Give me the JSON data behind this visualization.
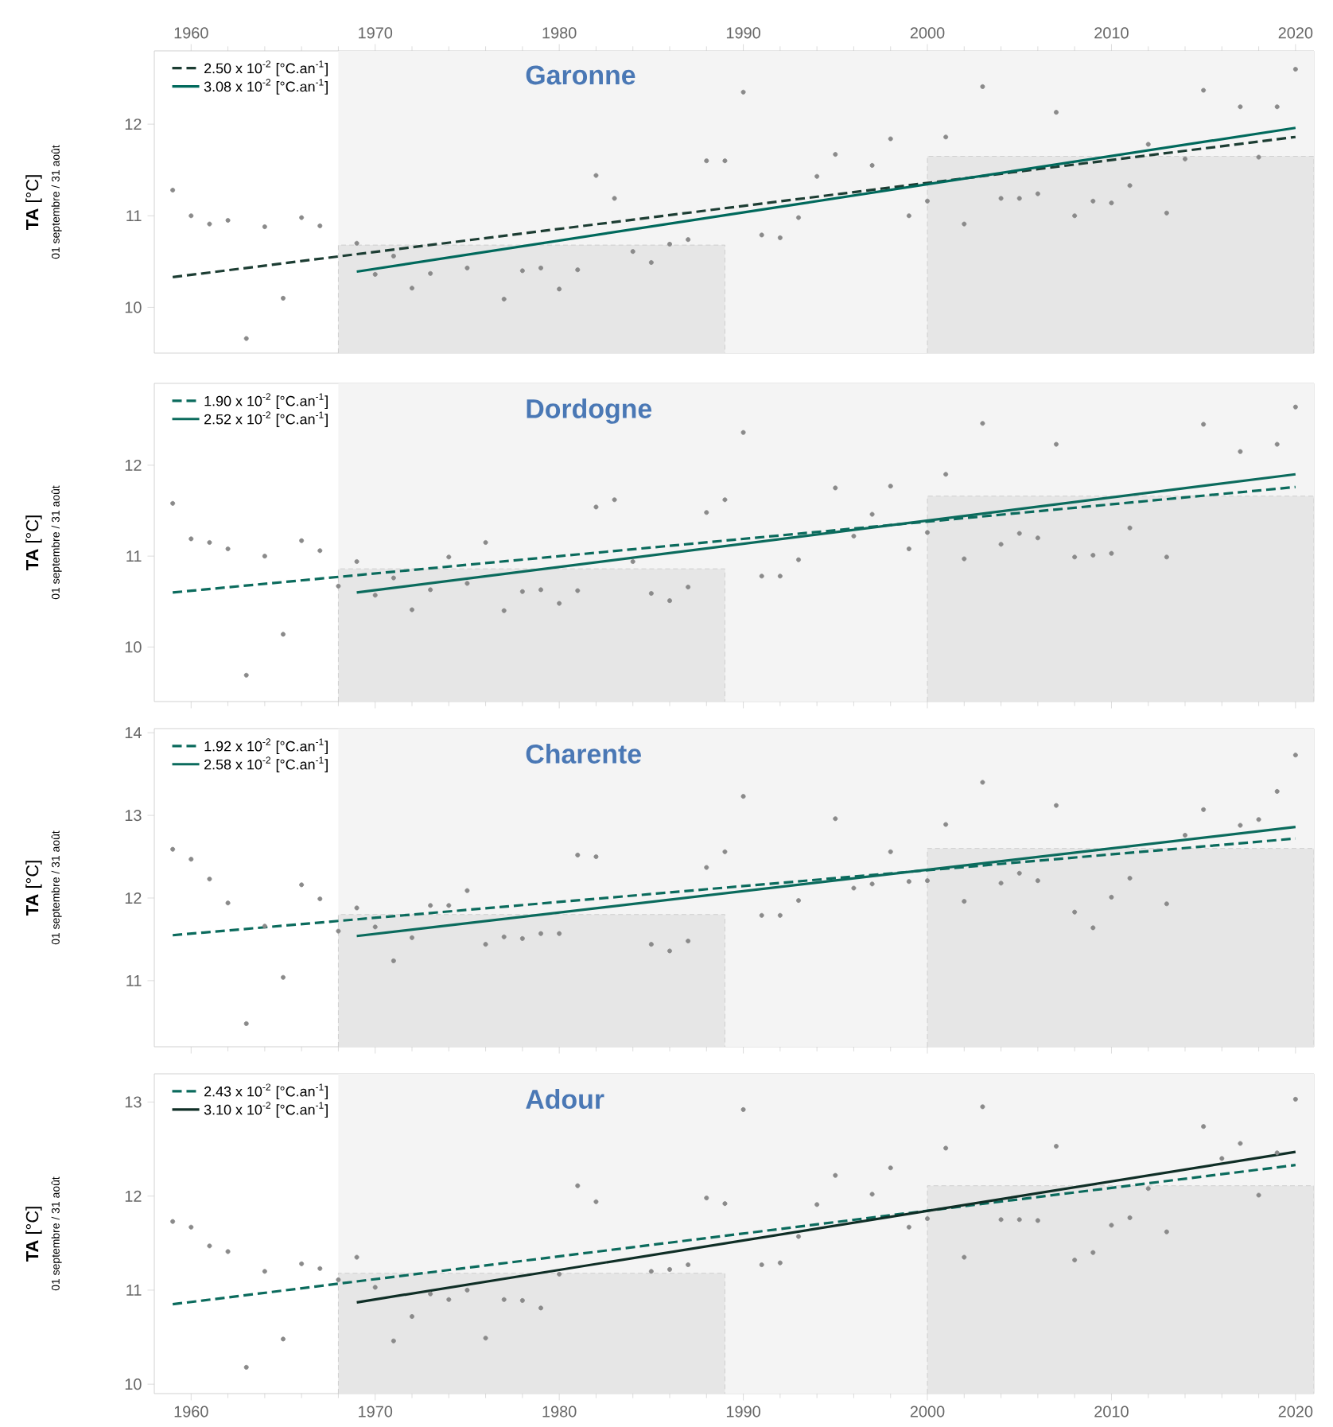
{
  "chart_data": [
    {
      "type": "scatter",
      "title": "Garonne",
      "ylabel": "**TA**   [°C]",
      "annotations": [
        "01 septembre / 31 août"
      ],
      "x": [
        1959,
        1960,
        1961,
        1962,
        1963,
        1964,
        1965,
        1966,
        1967,
        1968,
        1969,
        1970,
        1971,
        1972,
        1973,
        1974,
        1975,
        1976,
        1977,
        1978,
        1979,
        1980,
        1981,
        1982,
        1983,
        1984,
        1985,
        1986,
        1987,
        1988,
        1989,
        1990,
        1991,
        1992,
        1993,
        1994,
        1995,
        1996,
        1997,
        1998,
        1999,
        2000,
        2001,
        2002,
        2003,
        2004,
        2005,
        2006,
        2007,
        2008,
        2009,
        2010,
        2011,
        2012,
        2013,
        2014,
        2015,
        2016,
        2017,
        2018,
        2019,
        2020
      ],
      "xlim": [
        1958,
        2021
      ],
      "x2lim": [
        1958,
        2021
      ],
      "x2ticks": [
        1960,
        1970,
        1980,
        1990,
        2000,
        2010,
        2020
      ],
      "ylim": [
        9.5,
        12.8
      ],
      "yticks": [
        10,
        11,
        12
      ],
      "bands": [
        {
          "axis": "x",
          "from": 1968,
          "to": 2021,
          "color": "#f4f4f4"
        }
      ],
      "legend": "top left",
      "series": [
        {
          "type": "area",
          "color": "#e6e6e6",
          "x": [
            1968,
            1989
          ],
          "values": [
            10.68,
            10.68
          ]
        },
        {
          "type": "area",
          "color": "#e6e6e6",
          "x": [
            2000,
            2021
          ],
          "values": [
            11.65,
            11.65
          ]
        },
        {
          "marker": "circle",
          "color": "#8a8a8a",
          "values": [
            11.28,
            11.0,
            10.91,
            10.95,
            9.66,
            10.88,
            10.1,
            10.98,
            10.89,
            null,
            10.7,
            10.36,
            10.56,
            10.21,
            10.37,
            null,
            10.43,
            null,
            10.09,
            10.4,
            10.43,
            10.2,
            10.41,
            11.44,
            11.19,
            10.61,
            10.49,
            10.69,
            10.74,
            11.6,
            11.6,
            12.35,
            10.79,
            10.76,
            10.98,
            11.43,
            11.67,
            null,
            11.55,
            11.84,
            11.0,
            11.16,
            11.86,
            10.91,
            12.41,
            11.19,
            11.19,
            11.24,
            12.13,
            11.0,
            11.16,
            11.14,
            11.33,
            11.78,
            11.03,
            11.62,
            12.37,
            null,
            12.19,
            11.64,
            12.19,
            12.6
          ]
        },
        {
          "type": "line",
          "name": "2.50 x 10$^{-2}$ [°C.an$^{-1}$]",
          "color": "#1c3d33",
          "line_style": "dashed",
          "x": [
            1959,
            2020
          ],
          "values": [
            10.33,
            11.86
          ]
        },
        {
          "type": "line",
          "name": "3.08 x 10$^{-2}$ [°C.an$^{-1}$]",
          "color": "#00695c",
          "line_style": "solid",
          "x": [
            1969,
            2020
          ],
          "values": [
            10.39,
            11.96
          ]
        }
      ]
    },
    {
      "type": "scatter",
      "title": "Dordogne",
      "ylabel": "**TA**   [°C]",
      "annotations": [
        "01 septembre / 31 août"
      ],
      "x": [
        1959,
        1960,
        1961,
        1962,
        1963,
        1964,
        1965,
        1966,
        1967,
        1968,
        1969,
        1970,
        1971,
        1972,
        1973,
        1974,
        1975,
        1976,
        1977,
        1978,
        1979,
        1980,
        1981,
        1982,
        1983,
        1984,
        1985,
        1986,
        1987,
        1988,
        1989,
        1990,
        1991,
        1992,
        1993,
        1994,
        1995,
        1996,
        1997,
        1998,
        1999,
        2000,
        2001,
        2002,
        2003,
        2004,
        2005,
        2006,
        2007,
        2008,
        2009,
        2010,
        2011,
        2012,
        2013,
        2014,
        2015,
        2016,
        2017,
        2018,
        2019,
        2020
      ],
      "xlim": [
        1958,
        2021
      ],
      "xticks": [
        1960,
        1970,
        1980,
        1990,
        2000,
        2010,
        2020
      ],
      "tick_labels": "y",
      "ylim": [
        9.4,
        12.9
      ],
      "yticks": [
        10,
        11,
        12
      ],
      "bands": [
        {
          "axis": "x",
          "from": 1968,
          "to": 2021,
          "color": "#f4f4f4"
        }
      ],
      "legend": "top left",
      "series": [
        {
          "type": "area",
          "color": "#e6e6e6",
          "x": [
            1968,
            1989
          ],
          "values": [
            10.86,
            10.86
          ]
        },
        {
          "type": "area",
          "color": "#e6e6e6",
          "x": [
            2000,
            2021
          ],
          "values": [
            11.66,
            11.66
          ]
        },
        {
          "marker": "circle",
          "color": "#8a8a8a",
          "values": [
            11.58,
            11.19,
            11.15,
            11.08,
            9.69,
            11.0,
            10.14,
            11.17,
            11.06,
            10.67,
            10.94,
            10.57,
            10.76,
            10.41,
            10.63,
            10.99,
            10.7,
            11.15,
            10.4,
            10.61,
            10.63,
            10.48,
            10.62,
            11.54,
            11.62,
            10.94,
            10.59,
            10.51,
            10.66,
            11.48,
            11.62,
            12.36,
            10.78,
            10.78,
            10.96,
            null,
            11.75,
            11.22,
            11.46,
            11.77,
            11.08,
            11.26,
            11.9,
            10.97,
            12.46,
            11.13,
            11.25,
            11.2,
            12.23,
            10.99,
            11.01,
            11.03,
            11.31,
            null,
            10.99,
            null,
            12.45,
            null,
            12.15,
            null,
            12.23,
            12.64
          ]
        },
        {
          "type": "line",
          "name": "1.90 x 10$^{-2}$ [°C.an$^{-1}$]",
          "color": "#0b6b5d",
          "line_style": "dashed",
          "x": [
            1959,
            2020
          ],
          "values": [
            10.6,
            11.76
          ]
        },
        {
          "type": "line",
          "name": "2.52 x 10$^{-2}$ [°C.an$^{-1}$]",
          "color": "#0b6b5d",
          "line_style": "solid",
          "x": [
            1969,
            2020
          ],
          "values": [
            10.6,
            11.9
          ]
        }
      ]
    },
    {
      "type": "scatter",
      "title": "Charente",
      "ylabel": "**TA**   [°C]",
      "annotations": [
        "01 septembre / 31 août"
      ],
      "x": [
        1959,
        1960,
        1961,
        1962,
        1963,
        1964,
        1965,
        1966,
        1967,
        1968,
        1969,
        1970,
        1971,
        1972,
        1973,
        1974,
        1975,
        1976,
        1977,
        1978,
        1979,
        1980,
        1981,
        1982,
        1983,
        1984,
        1985,
        1986,
        1987,
        1988,
        1989,
        1990,
        1991,
        1992,
        1993,
        1994,
        1995,
        1996,
        1997,
        1998,
        1999,
        2000,
        2001,
        2002,
        2003,
        2004,
        2005,
        2006,
        2007,
        2008,
        2009,
        2010,
        2011,
        2012,
        2013,
        2014,
        2015,
        2016,
        2017,
        2018,
        2019,
        2020
      ],
      "xlim": [
        1958,
        2021
      ],
      "xticks": [
        1960,
        1970,
        1980,
        1990,
        2000,
        2010,
        2020
      ],
      "tick_labels": "y",
      "ylim": [
        10.2,
        14.05
      ],
      "yticks": [
        11,
        12,
        13,
        14
      ],
      "bands": [
        {
          "axis": "x",
          "from": 1968,
          "to": 2021,
          "color": "#f4f4f4"
        }
      ],
      "legend": "top left",
      "series": [
        {
          "type": "area",
          "color": "#e6e6e6",
          "x": [
            1968,
            1989
          ],
          "values": [
            11.8,
            11.8
          ]
        },
        {
          "type": "area",
          "color": "#e6e6e6",
          "x": [
            2000,
            2021
          ],
          "values": [
            12.6,
            12.6
          ]
        },
        {
          "marker": "circle",
          "color": "#8a8a8a",
          "values": [
            12.59,
            12.47,
            12.23,
            11.94,
            10.48,
            11.66,
            11.04,
            12.16,
            11.99,
            11.6,
            11.88,
            11.65,
            11.24,
            11.52,
            11.91,
            11.91,
            12.09,
            11.44,
            11.53,
            11.51,
            11.57,
            11.57,
            12.52,
            12.5,
            null,
            null,
            11.44,
            11.36,
            11.48,
            12.37,
            12.56,
            13.23,
            11.79,
            11.79,
            11.97,
            null,
            12.96,
            12.12,
            12.17,
            12.56,
            12.2,
            12.21,
            12.89,
            11.96,
            13.4,
            12.18,
            12.3,
            12.21,
            13.12,
            11.83,
            11.64,
            12.01,
            12.24,
            null,
            11.93,
            12.76,
            13.07,
            null,
            12.88,
            12.95,
            13.29,
            13.73
          ]
        },
        {
          "type": "line",
          "name": "1.92 x 10$^{-2}$ [°C.an$^{-1}$]",
          "color": "#0b6b5d",
          "line_style": "dashed",
          "x": [
            1959,
            2020
          ],
          "values": [
            11.55,
            12.72
          ]
        },
        {
          "type": "line",
          "name": "2.58 x 10$^{-2}$ [°C.an$^{-1}$]",
          "color": "#0b6b5d",
          "line_style": "solid",
          "x": [
            1969,
            2020
          ],
          "values": [
            11.54,
            12.86
          ]
        }
      ]
    },
    {
      "type": "scatter",
      "title": "Adour",
      "ylabel": "**TA**   [°C]",
      "annotations": [
        "01 septembre / 31 août"
      ],
      "x": [
        1959,
        1960,
        1961,
        1962,
        1963,
        1964,
        1965,
        1966,
        1967,
        1968,
        1969,
        1970,
        1971,
        1972,
        1973,
        1974,
        1975,
        1976,
        1977,
        1978,
        1979,
        1980,
        1981,
        1982,
        1983,
        1984,
        1985,
        1986,
        1987,
        1988,
        1989,
        1990,
        1991,
        1992,
        1993,
        1994,
        1995,
        1996,
        1997,
        1998,
        1999,
        2000,
        2001,
        2002,
        2003,
        2004,
        2005,
        2006,
        2007,
        2008,
        2009,
        2010,
        2011,
        2012,
        2013,
        2014,
        2015,
        2016,
        2017,
        2018,
        2019,
        2020
      ],
      "xlim": [
        1958,
        2021
      ],
      "xticks": [
        1960,
        1970,
        1980,
        1990,
        2000,
        2010,
        2020
      ],
      "ylim": [
        9.9,
        13.3
      ],
      "yticks": [
        10,
        11,
        12,
        13
      ],
      "bands": [
        {
          "axis": "x",
          "from": 1968,
          "to": 2021,
          "color": "#f4f4f4"
        }
      ],
      "legend": "top left",
      "series": [
        {
          "type": "area",
          "color": "#e6e6e6",
          "x": [
            1968,
            1989
          ],
          "values": [
            11.18,
            11.18
          ]
        },
        {
          "type": "area",
          "color": "#e6e6e6",
          "x": [
            2000,
            2021
          ],
          "values": [
            12.11,
            12.11
          ]
        },
        {
          "marker": "circle",
          "color": "#8a8a8a",
          "values": [
            11.73,
            11.67,
            11.47,
            11.41,
            10.18,
            11.2,
            10.48,
            11.28,
            11.23,
            11.11,
            11.35,
            11.03,
            10.46,
            10.72,
            10.96,
            10.9,
            11.0,
            10.49,
            10.9,
            10.89,
            10.81,
            11.17,
            12.11,
            11.94,
            null,
            null,
            11.2,
            11.22,
            11.27,
            11.98,
            11.92,
            12.92,
            11.27,
            11.29,
            11.57,
            11.91,
            12.22,
            null,
            12.02,
            12.3,
            11.67,
            11.76,
            12.51,
            11.35,
            12.95,
            11.75,
            11.75,
            11.74,
            12.53,
            11.32,
            11.4,
            11.69,
            11.77,
            12.08,
            11.62,
            null,
            12.74,
            12.4,
            12.56,
            12.01,
            12.46,
            13.03
          ]
        },
        {
          "type": "line",
          "name": "2.43 x 10$^{-2}$ [°C.an$^{-1}$]",
          "color": "#0b6b5d",
          "line_style": "dashed",
          "x": [
            1959,
            2020
          ],
          "values": [
            10.85,
            12.33
          ]
        },
        {
          "type": "line",
          "name": "3.10 x 10$^{-2}$ [°C.an$^{-1}$]",
          "color": "#0f2e26",
          "line_style": "solid",
          "x": [
            1969,
            2020
          ],
          "values": [
            10.87,
            12.47
          ]
        }
      ]
    }
  ]
}
